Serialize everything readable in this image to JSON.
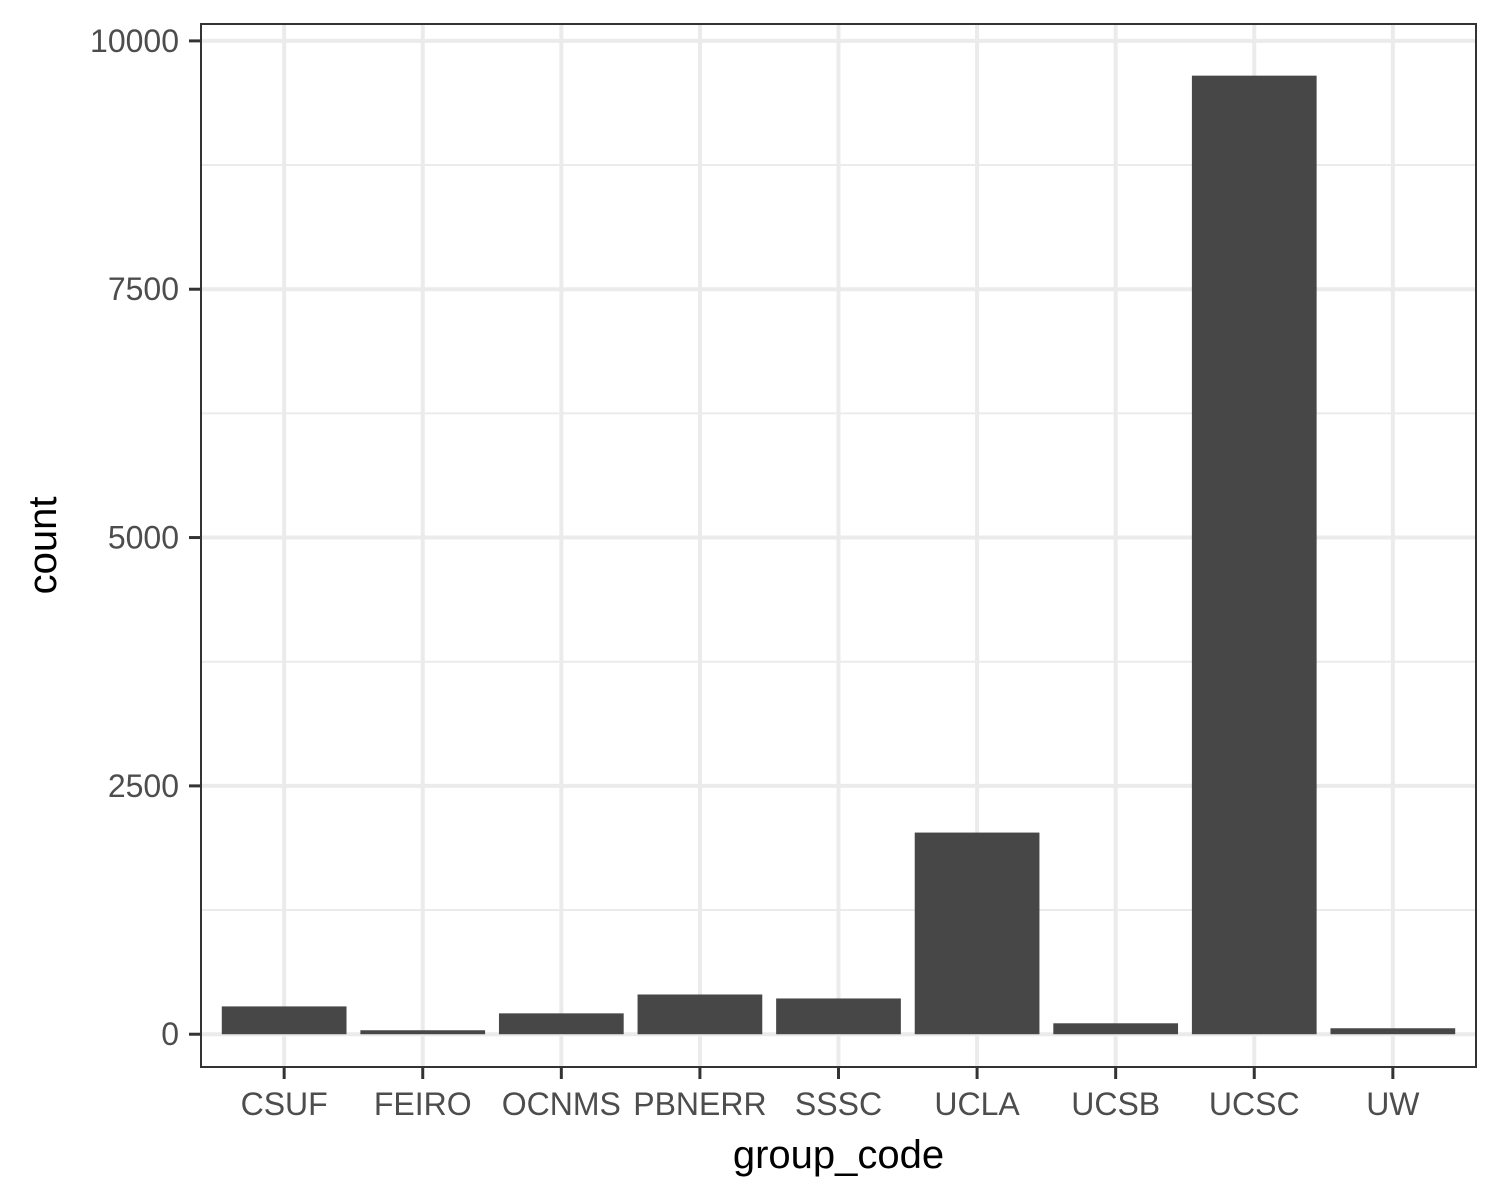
{
  "chart_data": {
    "type": "bar",
    "title": "",
    "xlabel": "group_code",
    "ylabel": "count",
    "categories": [
      "CSUF",
      "FEIRO",
      "OCNMS",
      "PBNERR",
      "SSSC",
      "UCLA",
      "UCSB",
      "UCSC",
      "UW"
    ],
    "values": [
      280,
      40,
      210,
      400,
      360,
      2030,
      110,
      9650,
      60
    ],
    "ylim": [
      -330,
      10170
    ],
    "yticks": [
      0,
      2500,
      5000,
      7500,
      10000
    ],
    "yticks_minor": [
      1250,
      3750,
      6250,
      8750
    ],
    "grid": true,
    "legend": "none",
    "colors": {
      "bar": "#474747",
      "grid": "#ebebeb",
      "panel_border": "#333333",
      "background": "#ffffff"
    }
  }
}
